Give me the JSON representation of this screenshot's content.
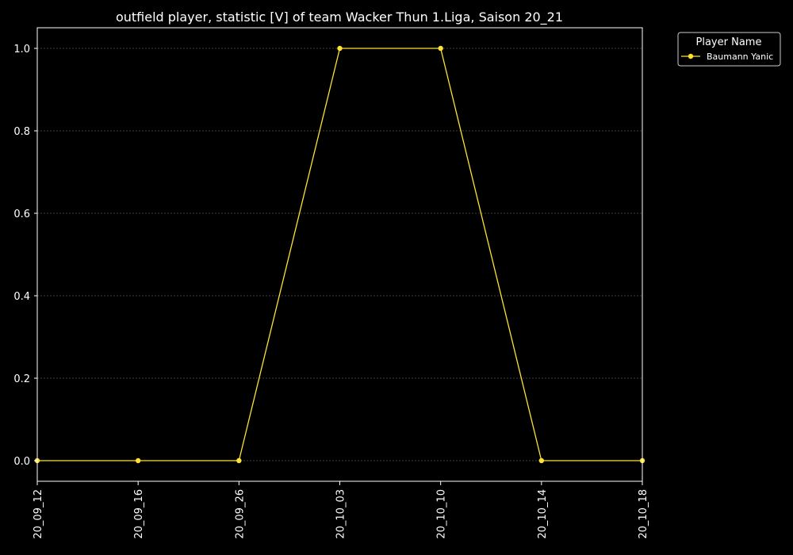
{
  "chart_data": {
    "type": "line",
    "title": "outfield player, statistic [V] of team Wacker Thun 1.Liga, Saison 20_21",
    "xlabel": "",
    "ylabel": "",
    "categories": [
      "20_09_12",
      "20_09_16",
      "20_09_26",
      "20_10_03",
      "20_10_10",
      "20_10_14",
      "20_10_18"
    ],
    "series": [
      {
        "name": "Baumann Yanic",
        "values": [
          0,
          0,
          0,
          1,
          1,
          0,
          0
        ]
      }
    ],
    "ylim": [
      -0.05,
      1.05
    ],
    "yticks": [
      "0.0",
      "0.2",
      "0.4",
      "0.6",
      "0.8",
      "1.0"
    ],
    "ytick_values": [
      0,
      0.2,
      0.4,
      0.6,
      0.8,
      1.0
    ],
    "grid": "horizontal dotted",
    "legend": {
      "title": "Player Name",
      "placement": "outside-top-right"
    },
    "colors": {
      "background": "#000000",
      "axes": "#ffffff",
      "series": "#ffe135",
      "grid": "#777777"
    }
  }
}
